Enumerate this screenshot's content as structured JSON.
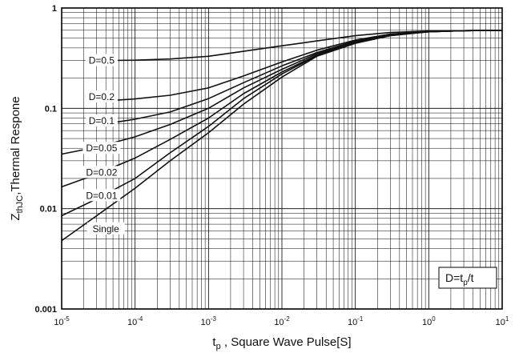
{
  "chart_data": {
    "type": "line",
    "x_scale": "log",
    "y_scale": "log",
    "xlim": [
      1e-05,
      10
    ],
    "ylim": [
      0.001,
      1
    ],
    "xlabel": "t",
    "xlabel_sub": "p",
    "xlabel_rest": " ,  Square Wave Pulse[S]",
    "ylabel": "Z",
    "ylabel_sub": "thJC",
    "ylabel_rest": ",Thermal Respone",
    "annotation": {
      "main": "D=t",
      "sub": "p",
      "rest": "/t"
    },
    "x_ticks": [
      {
        "value": 1e-05,
        "base": "10",
        "exp": "-5"
      },
      {
        "value": 0.0001,
        "base": "10",
        "exp": "-4"
      },
      {
        "value": 0.001,
        "base": "10",
        "exp": "-3"
      },
      {
        "value": 0.01,
        "base": "10",
        "exp": "-2"
      },
      {
        "value": 0.1,
        "base": "10",
        "exp": "-1"
      },
      {
        "value": 1,
        "base": "10",
        "exp": "0"
      },
      {
        "value": 10,
        "base": "10",
        "exp": "1"
      }
    ],
    "y_ticks": [
      {
        "value": 0.001,
        "label": "0.001"
      },
      {
        "value": 0.01,
        "label": "0.01"
      },
      {
        "value": 0.1,
        "label": "0.1"
      },
      {
        "value": 1,
        "label": "1"
      }
    ],
    "grid": true,
    "series": [
      {
        "name": "D=0.5",
        "label_at": [
          3.5e-05,
          0.3
        ],
        "x": [
          5e-05,
          0.0001,
          0.0003,
          0.001,
          0.003,
          0.01,
          0.03,
          0.1,
          0.3,
          1,
          3,
          10
        ],
        "y": [
          0.3,
          0.302,
          0.31,
          0.33,
          0.37,
          0.42,
          0.47,
          0.53,
          0.57,
          0.59,
          0.595,
          0.6
        ]
      },
      {
        "name": "D=0.2",
        "label_at": [
          3.5e-05,
          0.13
        ],
        "x": [
          5e-05,
          0.0001,
          0.0003,
          0.001,
          0.003,
          0.01,
          0.03,
          0.1,
          0.3,
          1,
          3,
          10
        ],
        "y": [
          0.12,
          0.124,
          0.135,
          0.16,
          0.21,
          0.29,
          0.38,
          0.48,
          0.55,
          0.585,
          0.595,
          0.6
        ]
      },
      {
        "name": "D=0.1",
        "label_at": [
          3.5e-05,
          0.075
        ],
        "x": [
          5e-05,
          0.0001,
          0.0003,
          0.001,
          0.003,
          0.01,
          0.03,
          0.1,
          0.3,
          1,
          3,
          10
        ],
        "y": [
          0.072,
          0.078,
          0.092,
          0.125,
          0.18,
          0.265,
          0.36,
          0.47,
          0.545,
          0.585,
          0.595,
          0.6
        ]
      },
      {
        "name": "D=0.05",
        "label_at": [
          3.5e-05,
          0.04
        ],
        "x": [
          1e-05,
          3e-05,
          0.0001,
          0.0003,
          0.001,
          0.003,
          0.01,
          0.03,
          0.1,
          0.3,
          1,
          3,
          10
        ],
        "y": [
          0.035,
          0.041,
          0.052,
          0.069,
          0.1,
          0.16,
          0.245,
          0.35,
          0.46,
          0.54,
          0.58,
          0.595,
          0.6
        ]
      },
      {
        "name": "D=0.02",
        "label_at": [
          3.5e-05,
          0.023
        ],
        "x": [
          1e-05,
          3e-05,
          0.0001,
          0.0003,
          0.001,
          0.003,
          0.01,
          0.03,
          0.1,
          0.3,
          1,
          3,
          10
        ],
        "y": [
          0.0165,
          0.022,
          0.032,
          0.049,
          0.08,
          0.14,
          0.23,
          0.34,
          0.455,
          0.535,
          0.58,
          0.595,
          0.6
        ]
      },
      {
        "name": "D=0.01",
        "label_at": [
          3.5e-05,
          0.0135
        ],
        "x": [
          1e-05,
          3e-05,
          0.0001,
          0.0003,
          0.001,
          0.003,
          0.01,
          0.03,
          0.1,
          0.3,
          1,
          3,
          10
        ],
        "y": [
          0.0085,
          0.0125,
          0.02,
          0.036,
          0.066,
          0.125,
          0.22,
          0.335,
          0.45,
          0.535,
          0.58,
          0.595,
          0.6
        ]
      },
      {
        "name": "Single",
        "label_at": [
          4e-05,
          0.0063
        ],
        "x": [
          1e-05,
          3e-05,
          0.0001,
          0.0003,
          0.001,
          0.003,
          0.01,
          0.03,
          0.1,
          0.3,
          1,
          3,
          10
        ],
        "y": [
          0.0048,
          0.0085,
          0.016,
          0.03,
          0.057,
          0.11,
          0.205,
          0.33,
          0.445,
          0.53,
          0.58,
          0.595,
          0.6
        ]
      }
    ]
  }
}
